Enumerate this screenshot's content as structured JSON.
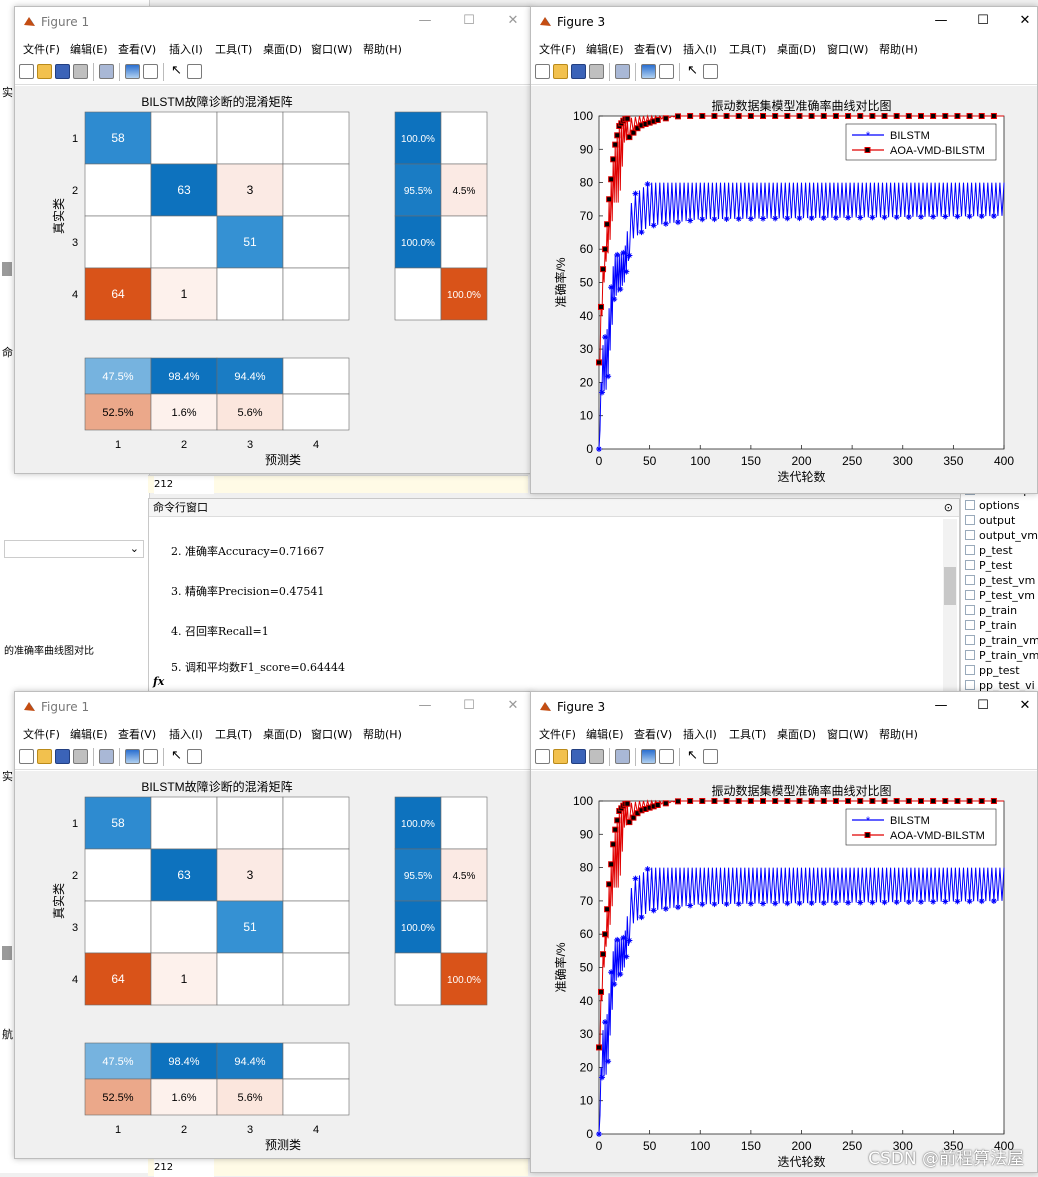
{
  "background": {
    "left_texts": [
      "实",
      "命",
      "的准确率曲线图对比",
      "实",
      "航"
    ],
    "editor_line": "212",
    "command_window": {
      "title": "命令行窗口",
      "lines": [
        "2. 准确率Accuracy=0.71667",
        "3. 精确率Precision=0.47541",
        "4. 召回率Recall=1",
        "5. 调和平均数F1_score=0.64444"
      ],
      "prompt": "fx"
    },
    "workspace_items": [
      "numRespo",
      "options",
      "output",
      "output_vm",
      "p_test",
      "P_test",
      "p_test_vm",
      "P_test_vm",
      "p_train",
      "P_train",
      "p_train_vm",
      "P_train_vm",
      "pp_test",
      "pp_test_vi"
    ]
  },
  "menu": [
    "文件(F)",
    "编辑(E)",
    "查看(V)",
    "插入(I)",
    "工具(T)",
    "桌面(D)",
    "窗口(W)",
    "帮助(H)"
  ],
  "window_buttons": {
    "min": "—",
    "max": "☐",
    "close": "✕"
  },
  "figure1": {
    "title": "Figure 1",
    "chart_data": {
      "type": "heatmap",
      "title": "BILSTM故障诊断的混淆矩阵",
      "xlabel": "预测类",
      "ylabel": "真实类",
      "row_labels": [
        "1",
        "2",
        "3",
        "4"
      ],
      "col_labels": [
        "1",
        "2",
        "3",
        "4"
      ],
      "matrix": [
        [
          58,
          null,
          null,
          null
        ],
        [
          null,
          63,
          3,
          null
        ],
        [
          null,
          null,
          51,
          null
        ],
        [
          64,
          1,
          null,
          null
        ]
      ],
      "cell_colors": [
        [
          "#2e8bd0",
          null,
          null,
          null
        ],
        [
          null,
          "#0d72be",
          "#fbeae4",
          null
        ],
        [
          null,
          null,
          "#3591d3",
          null
        ],
        [
          "#d95319",
          "#fdf1ec",
          null,
          null
        ]
      ],
      "row_summary": [
        [
          "100.0%",
          ""
        ],
        [
          "95.5%",
          "4.5%"
        ],
        [
          "100.0%",
          ""
        ],
        [
          "",
          "100.0%"
        ]
      ],
      "row_summary_colors": [
        [
          "#0d72be",
          null
        ],
        [
          "#1a7cc4",
          "#fbeae4"
        ],
        [
          "#0d72be",
          null
        ],
        [
          null,
          "#d95319"
        ]
      ],
      "col_summary": [
        [
          "47.5%",
          "98.4%",
          "94.4%",
          ""
        ],
        [
          "52.5%",
          "1.6%",
          "5.6%",
          ""
        ]
      ],
      "col_summary_colors": [
        [
          "#76b3df",
          "#0d72be",
          "#1a7cc4",
          null
        ],
        [
          "#eba88a",
          "#fdf1ec",
          "#fbe6dd",
          null
        ]
      ]
    }
  },
  "figure3": {
    "title": "Figure 3",
    "chart_data": {
      "type": "line",
      "title": "振动数据集模型准确率曲线对比图",
      "xlabel": "迭代轮数",
      "ylabel": "准确率/%",
      "xlim": [
        0,
        400
      ],
      "ylim": [
        0,
        100
      ],
      "xticks": [
        0,
        50,
        100,
        150,
        200,
        250,
        300,
        350,
        400
      ],
      "yticks": [
        0,
        10,
        20,
        30,
        40,
        50,
        60,
        70,
        80,
        90,
        100
      ],
      "grid": false,
      "legend": "top-right",
      "series": [
        {
          "name": "BILSTM",
          "color": "#0000ff",
          "marker": "asterisk",
          "band": [
            [
              0,
              0,
              0
            ],
            [
              3,
              17,
              30
            ],
            [
              8,
              18,
              36
            ],
            [
              15,
              45,
              58
            ],
            [
              25,
              50,
              59
            ],
            [
              33,
              63,
              76
            ],
            [
              50,
              67,
              80
            ],
            [
              100,
              69,
              80
            ],
            [
              400,
              70,
              80
            ]
          ]
        },
        {
          "name": "AOA-VMD-BILSTM",
          "color": "#e00000",
          "marker": "square",
          "band": [
            [
              0,
              20,
              26
            ],
            [
              3,
              40,
              51
            ],
            [
              6,
              55,
              60
            ],
            [
              10,
              60,
              75
            ],
            [
              15,
              74,
              90
            ],
            [
              20,
              74,
              97
            ],
            [
              25,
              92,
              99
            ],
            [
              40,
              97,
              100
            ],
            [
              60,
              99,
              100
            ],
            [
              80,
              100,
              100
            ],
            [
              400,
              100,
              100
            ]
          ]
        }
      ]
    }
  },
  "watermark_text": "CSDN @前程算法屋"
}
